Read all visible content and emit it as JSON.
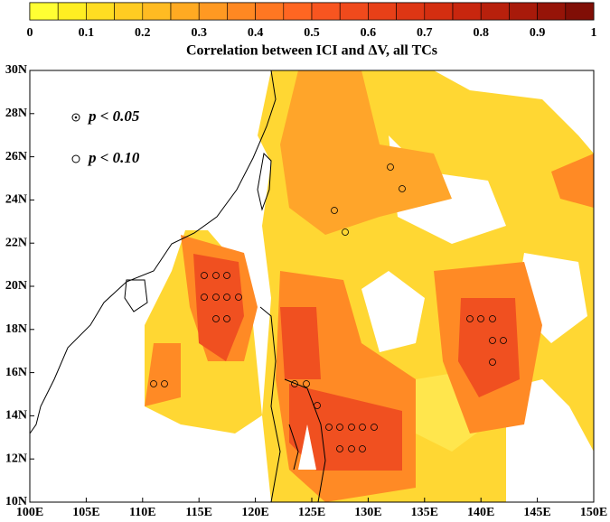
{
  "colorbar": {
    "ticks": [
      0,
      0.1,
      0.2,
      0.3,
      0.4,
      0.5,
      0.6,
      0.7,
      0.8,
      0.9,
      1
    ],
    "lim": [
      0,
      1
    ],
    "colors": [
      "#ffff33",
      "#ffee22",
      "#ffdd22",
      "#ffcc22",
      "#ffbb22",
      "#ffaa22",
      "#ff9922",
      "#ff8822",
      "#ff7722",
      "#ff6622",
      "#f85520",
      "#f04a1c",
      "#e84018",
      "#de3614",
      "#d42e10",
      "#c8260e",
      "#b8200c",
      "#a81a0a",
      "#961408",
      "#800e06"
    ]
  },
  "title": "Correlation between ICI and ΔV, all TCs",
  "map": {
    "xlim": [
      100,
      150
    ],
    "ylim": [
      10,
      30
    ],
    "xticks": [
      {
        "value": 100,
        "label": "100E"
      },
      {
        "value": 105,
        "label": "105E"
      },
      {
        "value": 110,
        "label": "110E"
      },
      {
        "value": 115,
        "label": "115E"
      },
      {
        "value": 120,
        "label": "120E"
      },
      {
        "value": 125,
        "label": "125E"
      },
      {
        "value": 130,
        "label": "130E"
      },
      {
        "value": 135,
        "label": "135E"
      },
      {
        "value": 140,
        "label": "140E"
      },
      {
        "value": 145,
        "label": "145E"
      },
      {
        "value": 150,
        "label": "150E"
      }
    ],
    "yticks": [
      {
        "value": 10,
        "label": "10N"
      },
      {
        "value": 12,
        "label": "12N"
      },
      {
        "value": 14,
        "label": "14N"
      },
      {
        "value": 16,
        "label": "16N"
      },
      {
        "value": 18,
        "label": "18N"
      },
      {
        "value": 20,
        "label": "20N"
      },
      {
        "value": 22,
        "label": "22N"
      },
      {
        "value": 24,
        "label": "24N"
      },
      {
        "value": 26,
        "label": "26N"
      },
      {
        "value": 28,
        "label": "28N"
      },
      {
        "value": 30,
        "label": "30N"
      }
    ]
  },
  "legend": [
    "p < 0.05",
    "p < 0.10"
  ]
}
